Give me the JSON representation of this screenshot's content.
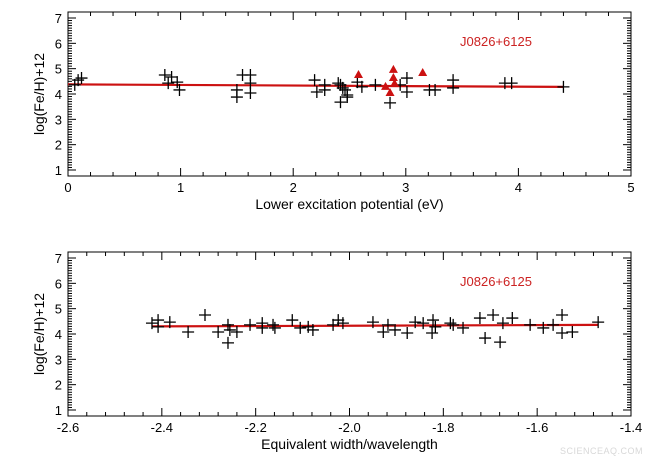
{
  "chart_data": [
    {
      "type": "scatter",
      "annotation": "J0826+6125",
      "xlabel": "Lower excitation potential (eV)",
      "ylabel": "log(Fe/H)+12",
      "xlim": [
        0,
        5
      ],
      "ylim": [
        1,
        7
      ],
      "xticks": [
        "0",
        "1",
        "2",
        "3",
        "4",
        "5"
      ],
      "yticks": [
        "1",
        "2",
        "3",
        "4",
        "5",
        "6",
        "7"
      ],
      "grid": false,
      "colors": {
        "points": "#000000",
        "triangles": "#cc1111",
        "fit": "#cc1111",
        "annotation": "#cc2222"
      },
      "series": [
        {
          "marker": "plus",
          "points": [
            [
              0.09,
              4.55
            ],
            [
              0.12,
              4.63
            ],
            [
              0.06,
              4.36
            ],
            [
              0.86,
              4.75
            ],
            [
              0.92,
              4.67
            ],
            [
              0.97,
              4.47
            ],
            [
              0.99,
              4.16
            ],
            [
              0.89,
              4.43
            ],
            [
              1.5,
              4.16
            ],
            [
              1.5,
              3.88
            ],
            [
              1.55,
              4.75
            ],
            [
              1.62,
              4.75
            ],
            [
              1.62,
              4.43
            ],
            [
              1.62,
              4.04
            ],
            [
              2.19,
              4.55
            ],
            [
              2.21,
              4.08
            ],
            [
              2.28,
              4.36
            ],
            [
              2.28,
              4.16
            ],
            [
              2.42,
              4.36
            ],
            [
              2.42,
              3.68
            ],
            [
              2.46,
              4.16
            ],
            [
              2.48,
              3.88
            ],
            [
              2.4,
              4.43
            ],
            [
              2.44,
              4.24
            ],
            [
              2.48,
              3.96
            ],
            [
              2.57,
              4.47
            ],
            [
              2.61,
              4.28
            ],
            [
              2.73,
              4.36
            ],
            [
              2.86,
              3.65
            ],
            [
              2.95,
              4.36
            ],
            [
              3.01,
              4.63
            ],
            [
              3.01,
              4.08
            ],
            [
              3.21,
              4.16
            ],
            [
              3.26,
              4.16
            ],
            [
              3.42,
              4.55
            ],
            [
              3.42,
              4.24
            ],
            [
              3.88,
              4.43
            ],
            [
              3.94,
              4.43
            ],
            [
              4.4,
              4.28
            ]
          ]
        },
        {
          "marker": "triangle",
          "points": [
            [
              2.58,
              4.75
            ],
            [
              2.89,
              4.95
            ],
            [
              2.89,
              4.63
            ],
            [
              2.82,
              4.28
            ],
            [
              2.86,
              4.04
            ],
            [
              2.9,
              4.4
            ],
            [
              3.15,
              4.83
            ]
          ]
        }
      ],
      "fit_line": [
        [
          0.0,
          4.38
        ],
        [
          4.4,
          4.28
        ]
      ]
    },
    {
      "type": "scatter",
      "annotation": "J0826+6125",
      "xlabel": "Equivalent width/wavelength",
      "ylabel": "log(Fe/H)+12",
      "xlim": [
        -2.6,
        -1.4
      ],
      "ylim": [
        1,
        7
      ],
      "xticks": [
        "-2.6",
        "-2.4",
        "-2.2",
        "-2.0",
        "-1.8",
        "-1.6",
        "-1.4"
      ],
      "yticks": [
        "1",
        "2",
        "3",
        "4",
        "5",
        "6",
        "7"
      ],
      "grid": false,
      "colors": {
        "points": "#000000",
        "fit": "#cc1111",
        "annotation": "#cc2222"
      },
      "series": [
        {
          "marker": "plus",
          "points": [
            [
              -2.421,
              4.43
            ],
            [
              -2.408,
              4.55
            ],
            [
              -2.408,
              4.28
            ],
            [
              -2.383,
              4.47
            ],
            [
              -2.344,
              4.08
            ],
            [
              -2.308,
              4.75
            ],
            [
              -2.28,
              4.08
            ],
            [
              -2.259,
              4.36
            ],
            [
              -2.255,
              4.16
            ],
            [
              -2.24,
              4.08
            ],
            [
              -2.259,
              3.65
            ],
            [
              -2.212,
              4.36
            ],
            [
              -2.186,
              4.43
            ],
            [
              -2.186,
              4.24
            ],
            [
              -2.163,
              4.36
            ],
            [
              -2.159,
              4.24
            ],
            [
              -2.122,
              4.55
            ],
            [
              -2.105,
              4.24
            ],
            [
              -2.088,
              4.28
            ],
            [
              -2.078,
              4.16
            ],
            [
              -2.035,
              4.36
            ],
            [
              -2.024,
              4.55
            ],
            [
              -2.014,
              4.43
            ],
            [
              -1.95,
              4.47
            ],
            [
              -1.928,
              4.08
            ],
            [
              -1.918,
              4.36
            ],
            [
              -1.903,
              4.16
            ],
            [
              -1.877,
              4.04
            ],
            [
              -1.86,
              4.47
            ],
            [
              -1.843,
              4.43
            ],
            [
              -1.824,
              4.04
            ],
            [
              -1.822,
              4.55
            ],
            [
              -1.817,
              4.28
            ],
            [
              -1.785,
              4.43
            ],
            [
              -1.779,
              4.36
            ],
            [
              -1.758,
              4.24
            ],
            [
              -1.722,
              4.63
            ],
            [
              -1.711,
              3.84
            ],
            [
              -1.694,
              4.75
            ],
            [
              -1.679,
              3.68
            ],
            [
              -1.673,
              4.43
            ],
            [
              -1.653,
              4.63
            ],
            [
              -1.615,
              4.36
            ],
            [
              -1.587,
              4.24
            ],
            [
              -1.566,
              4.36
            ],
            [
              -1.547,
              4.75
            ],
            [
              -1.547,
              4.04
            ],
            [
              -1.525,
              4.08
            ],
            [
              -1.47,
              4.47
            ]
          ]
        }
      ],
      "fit_line": [
        [
          -2.42,
          4.3
        ],
        [
          -1.47,
          4.36
        ]
      ]
    }
  ],
  "watermark": "SCIENCEAQ.COM"
}
